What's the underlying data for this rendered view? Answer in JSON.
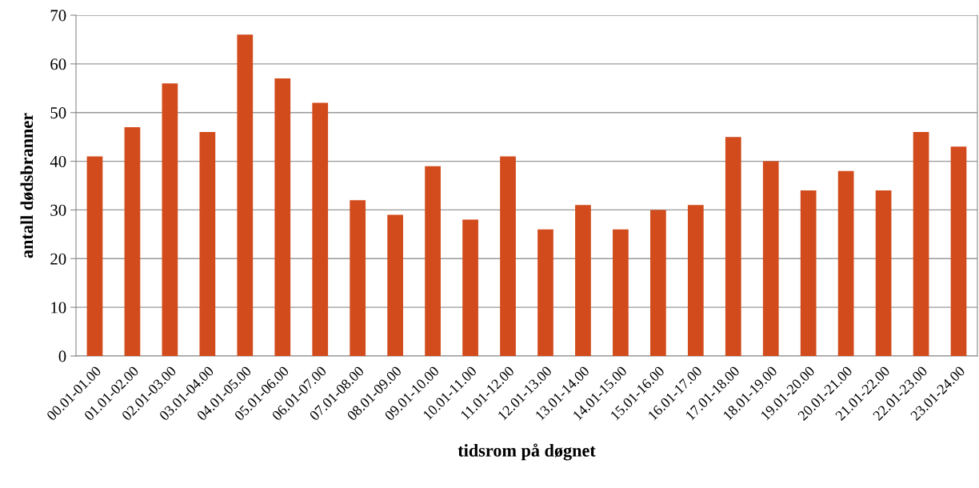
{
  "chart_data": {
    "type": "bar",
    "xlabel": "tidsrom på døgnet",
    "ylabel": "antall dødsbranner",
    "categories": [
      "00.01-01.00",
      "01.01-02.00",
      "02.01-03.00",
      "03.01-04.00",
      "04.01-05.00",
      "05.01-06.00",
      "06.01-07.00",
      "07.01-08.00",
      "08.01-09.00",
      "09.01-10.00",
      "10.01-11.00",
      "11.01-12.00",
      "12.01-13.00",
      "13.01-14.00",
      "14.01-15.00",
      "15.01-16.00",
      "16.01-17.00",
      "17.01-18.00",
      "18.01-19.00",
      "19.01-20.00",
      "20.01-21.00",
      "21.01-22.00",
      "22.01-23.00",
      "23.01-24.00"
    ],
    "values": [
      41,
      47,
      56,
      46,
      66,
      57,
      52,
      32,
      29,
      39,
      28,
      41,
      26,
      31,
      26,
      30,
      31,
      45,
      40,
      34,
      38,
      34,
      46,
      43
    ],
    "color": "#d24b1c",
    "ylim": [
      0,
      70
    ],
    "yticks": [
      0,
      10,
      20,
      30,
      40,
      50,
      60,
      70
    ],
    "grid": "y",
    "legend": false
  }
}
